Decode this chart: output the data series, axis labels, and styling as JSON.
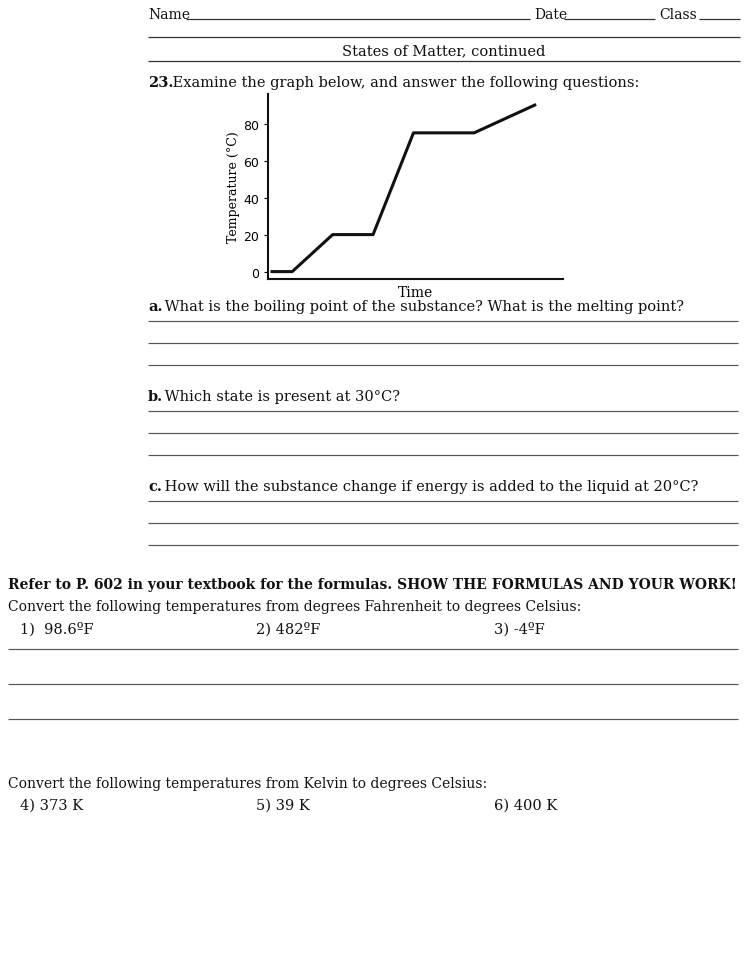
{
  "title": "States of Matter, continued",
  "header_name": "Name",
  "header_date": "Date",
  "header_class": "Class",
  "question_23_bold": "23.",
  "question_23_rest": " Examine the graph below, and answer the following questions:",
  "graph_xlabel": "Time",
  "graph_ylabel": "Temperature (°C)",
  "graph_yticks": [
    0,
    20,
    40,
    60,
    80
  ],
  "graph_x": [
    0,
    0.5,
    1.5,
    2.5,
    3.5,
    5.0,
    6.5
  ],
  "graph_y": [
    0,
    0,
    20,
    20,
    75,
    75,
    90
  ],
  "qa_label": "a.",
  "qa_text": " What is the boiling point of the substance? What is the melting point?",
  "qb_label": "b.",
  "qb_text": " Which state is present at 30°C?",
  "qc_label": "c.",
  "qc_text": " How will the substance change if energy is added to the liquid at 20°C?",
  "ref_text": "Refer to P. 602 in your textbook for the formulas. SHOW THE FORMULAS AND YOUR WORK!",
  "convert_f_to_c": "Convert the following temperatures from degrees Fahrenheit to degrees Celsius:",
  "f_items": [
    "1)  98.6ºF",
    "2) 482ºF",
    "3) -4ºF"
  ],
  "convert_k_to_c": "Convert the following temperatures from Kelvin to degrees Celsius:",
  "k_items": [
    "4) 373 K",
    "5) 39 K",
    "6) 400 K"
  ],
  "bg_color": "#ffffff",
  "line_color": "#222222",
  "text_color": "#111111",
  "answer_line_color": "#555555"
}
